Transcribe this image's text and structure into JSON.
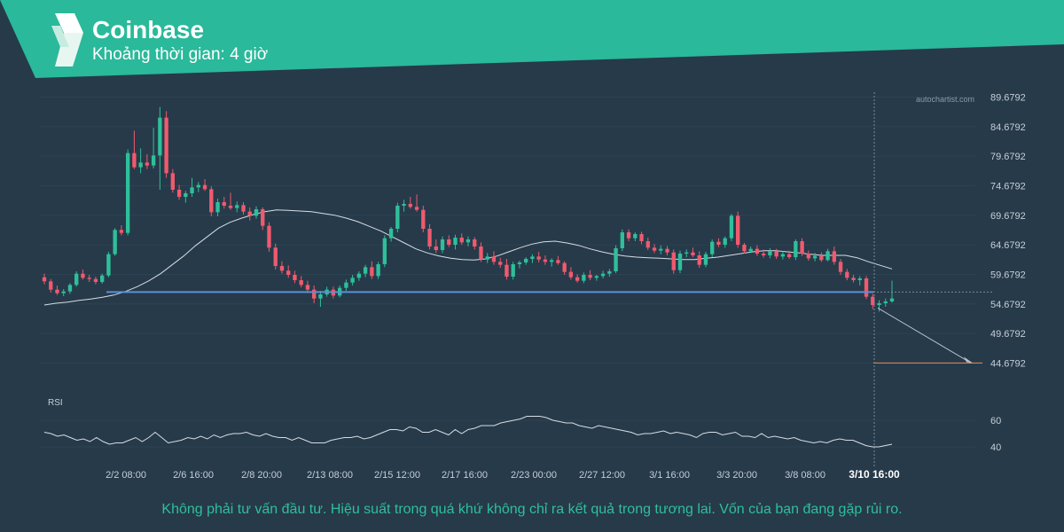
{
  "header": {
    "title": "Coinbase",
    "subtitle": "Khoảng thời gian: 4 giờ"
  },
  "watermark": "autochartist.com",
  "disclaimer": "Không phải tư vấn đầu tư. Hiệu suất trong quá khứ không chỉ ra kết quả trong tương lai. Vốn của bạn đang gặp rủi ro.",
  "colors": {
    "banner": "#2ab99a",
    "background": "#263a4a",
    "up_candle": "#2fbf9a",
    "down_candle": "#f05a6e",
    "moving_average": "#d8dde2",
    "support_line": "#5b8fd6",
    "target_line": "#f08a4b"
  },
  "chart_data": {
    "type": "candlestick",
    "timeframe": "4 giờ",
    "price_axis": {
      "ticks": [
        "89.6792",
        "84.6792",
        "79.6792",
        "74.6792",
        "69.6792",
        "64.6792",
        "59.6792",
        "54.6792",
        "49.6792",
        "44.6792"
      ],
      "ylim": [
        42.5,
        90.5
      ]
    },
    "x_tick_labels": [
      "2/2 08:00",
      "2/6 16:00",
      "2/8 20:00",
      "2/13 08:00",
      "2/15 12:00",
      "2/17 16:00",
      "2/23 00:00",
      "2/27 12:00",
      "3/1 16:00",
      "3/3 20:00",
      "3/8 08:00",
      "3/10 16:00"
    ],
    "current_time_label": "3/10 16:00",
    "support_level": 56.7,
    "target_level": 44.7,
    "projection": {
      "from_price": 54.0,
      "to_price": 44.7
    },
    "ohlc": [
      [
        59.2,
        59.8,
        58.0,
        58.5
      ],
      [
        58.5,
        58.9,
        56.6,
        57.1
      ],
      [
        57.1,
        57.8,
        56.2,
        56.5
      ],
      [
        56.5,
        57.2,
        56.0,
        56.8
      ],
      [
        56.8,
        58.2,
        56.4,
        57.9
      ],
      [
        57.9,
        60.2,
        57.6,
        59.8
      ],
      [
        59.8,
        60.5,
        58.8,
        59.1
      ],
      [
        59.1,
        59.6,
        58.4,
        58.9
      ],
      [
        58.9,
        59.3,
        58.0,
        58.4
      ],
      [
        58.4,
        59.8,
        58.1,
        59.5
      ],
      [
        59.5,
        63.5,
        59.2,
        63.1
      ],
      [
        63.1,
        67.5,
        62.8,
        67.2
      ],
      [
        67.2,
        68.0,
        66.3,
        66.7
      ],
      [
        66.7,
        80.8,
        66.3,
        80.2
      ],
      [
        80.2,
        84.0,
        77.5,
        77.8
      ],
      [
        77.8,
        81.0,
        76.8,
        78.6
      ],
      [
        78.6,
        80.0,
        77.5,
        78.1
      ],
      [
        78.1,
        84.5,
        77.6,
        79.8
      ],
      [
        79.8,
        88.0,
        74.0,
        86.2
      ],
      [
        86.2,
        87.3,
        76.0,
        76.8
      ],
      [
        76.8,
        77.5,
        73.5,
        74.0
      ],
      [
        74.0,
        74.8,
        72.3,
        72.8
      ],
      [
        72.8,
        73.8,
        71.8,
        73.4
      ],
      [
        73.4,
        76.0,
        72.8,
        74.4
      ],
      [
        74.4,
        75.3,
        73.6,
        74.8
      ],
      [
        74.8,
        75.8,
        73.8,
        74.1
      ],
      [
        74.1,
        74.6,
        69.5,
        70.2
      ],
      [
        70.2,
        72.5,
        69.5,
        71.9
      ],
      [
        71.9,
        72.8,
        70.8,
        71.3
      ],
      [
        71.3,
        73.5,
        70.6,
        70.9
      ],
      [
        70.9,
        72.0,
        70.2,
        71.4
      ],
      [
        71.4,
        71.9,
        69.8,
        70.3
      ],
      [
        70.3,
        71.0,
        68.8,
        69.6
      ],
      [
        69.6,
        71.2,
        69.1,
        70.7
      ],
      [
        70.7,
        71.0,
        67.2,
        67.9
      ],
      [
        67.9,
        68.5,
        63.5,
        64.2
      ],
      [
        64.2,
        64.9,
        60.5,
        61.1
      ],
      [
        61.1,
        61.9,
        59.8,
        60.3
      ],
      [
        60.3,
        61.2,
        59.1,
        59.6
      ],
      [
        59.6,
        60.3,
        58.2,
        58.7
      ],
      [
        58.7,
        59.4,
        57.5,
        57.9
      ],
      [
        57.9,
        58.6,
        56.5,
        57.1
      ],
      [
        57.1,
        57.8,
        54.8,
        55.6
      ],
      [
        55.6,
        56.9,
        54.2,
        56.3
      ],
      [
        56.3,
        57.6,
        55.9,
        57.1
      ],
      [
        57.1,
        57.6,
        55.6,
        56.1
      ],
      [
        56.1,
        57.8,
        55.8,
        57.4
      ],
      [
        57.4,
        58.8,
        56.9,
        58.3
      ],
      [
        58.3,
        59.6,
        57.8,
        59.1
      ],
      [
        59.1,
        60.2,
        58.6,
        59.8
      ],
      [
        59.8,
        61.3,
        59.2,
        60.9
      ],
      [
        60.9,
        61.9,
        58.9,
        59.4
      ],
      [
        59.4,
        61.8,
        58.9,
        61.4
      ],
      [
        61.4,
        66.3,
        60.9,
        65.8
      ],
      [
        65.8,
        67.7,
        65.2,
        67.4
      ],
      [
        67.4,
        71.8,
        66.8,
        71.3
      ],
      [
        71.3,
        72.3,
        70.3,
        71.6
      ],
      [
        71.6,
        72.8,
        70.8,
        71.1
      ],
      [
        71.1,
        73.2,
        70.3,
        70.6
      ],
      [
        70.6,
        71.3,
        66.8,
        67.4
      ],
      [
        67.4,
        68.2,
        63.9,
        64.4
      ],
      [
        64.4,
        65.6,
        63.3,
        63.8
      ],
      [
        63.8,
        66.1,
        63.3,
        65.6
      ],
      [
        65.6,
        66.3,
        64.3,
        64.7
      ],
      [
        64.7,
        66.4,
        63.9,
        65.9
      ],
      [
        65.9,
        66.6,
        64.7,
        65.1
      ],
      [
        65.1,
        66.1,
        64.4,
        65.6
      ],
      [
        65.6,
        66.0,
        63.9,
        64.4
      ],
      [
        64.4,
        65.1,
        61.8,
        62.2
      ],
      [
        62.2,
        63.3,
        61.6,
        62.7
      ],
      [
        62.7,
        63.6,
        61.3,
        61.8
      ],
      [
        61.8,
        62.5,
        60.8,
        61.3
      ],
      [
        61.3,
        62.3,
        58.8,
        59.3
      ],
      [
        59.3,
        61.8,
        58.8,
        61.4
      ],
      [
        61.4,
        62.0,
        60.7,
        61.7
      ],
      [
        61.7,
        62.6,
        61.3,
        62.3
      ],
      [
        62.3,
        63.1,
        61.6,
        62.7
      ],
      [
        62.7,
        63.5,
        61.7,
        62.2
      ],
      [
        62.2,
        62.9,
        61.3,
        61.8
      ],
      [
        61.8,
        62.4,
        61.0,
        62.1
      ],
      [
        62.1,
        62.8,
        61.3,
        61.6
      ],
      [
        61.6,
        61.9,
        59.6,
        60.1
      ],
      [
        60.1,
        60.9,
        58.8,
        59.2
      ],
      [
        59.2,
        59.7,
        58.3,
        58.6
      ],
      [
        58.6,
        60.0,
        58.2,
        59.6
      ],
      [
        59.6,
        60.4,
        58.7,
        59.1
      ],
      [
        59.1,
        59.6,
        58.6,
        59.4
      ],
      [
        59.4,
        60.3,
        59.0,
        59.8
      ],
      [
        59.8,
        60.6,
        59.3,
        60.2
      ],
      [
        60.2,
        64.6,
        59.9,
        64.1
      ],
      [
        64.1,
        67.3,
        63.6,
        66.8
      ],
      [
        66.8,
        67.3,
        65.3,
        65.8
      ],
      [
        65.8,
        66.8,
        65.3,
        66.5
      ],
      [
        66.5,
        66.9,
        64.8,
        65.3
      ],
      [
        65.3,
        65.9,
        63.8,
        64.2
      ],
      [
        64.2,
        64.8,
        63.3,
        63.7
      ],
      [
        63.7,
        64.6,
        63.1,
        64.0
      ],
      [
        64.0,
        64.5,
        62.9,
        63.4
      ],
      [
        63.4,
        63.9,
        59.8,
        60.4
      ],
      [
        60.4,
        63.7,
        59.9,
        63.2
      ],
      [
        63.2,
        63.9,
        62.6,
        63.4
      ],
      [
        63.4,
        64.2,
        62.6,
        62.9
      ],
      [
        62.9,
        63.6,
        60.8,
        61.3
      ],
      [
        61.3,
        63.5,
        60.9,
        63.1
      ],
      [
        63.1,
        65.6,
        62.6,
        65.2
      ],
      [
        65.2,
        65.8,
        64.3,
        64.7
      ],
      [
        64.7,
        66.1,
        64.2,
        65.8
      ],
      [
        65.8,
        69.9,
        65.3,
        69.6
      ],
      [
        69.6,
        70.3,
        64.2,
        64.7
      ],
      [
        64.7,
        65.0,
        63.2,
        63.6
      ],
      [
        63.6,
        64.4,
        63.3,
        64.0
      ],
      [
        64.0,
        64.6,
        62.8,
        63.2
      ],
      [
        63.2,
        63.9,
        62.5,
        62.9
      ],
      [
        62.9,
        64.1,
        62.4,
        63.6
      ],
      [
        63.6,
        64.0,
        62.3,
        62.7
      ],
      [
        62.7,
        63.6,
        62.2,
        63.1
      ],
      [
        63.1,
        63.7,
        62.3,
        62.6
      ],
      [
        62.6,
        65.6,
        62.1,
        65.3
      ],
      [
        65.3,
        65.8,
        62.8,
        63.2
      ],
      [
        63.2,
        63.7,
        62.0,
        62.4
      ],
      [
        62.4,
        63.3,
        61.9,
        62.8
      ],
      [
        62.8,
        63.4,
        61.8,
        62.1
      ],
      [
        62.1,
        64.0,
        61.9,
        63.6
      ],
      [
        63.6,
        64.4,
        61.3,
        61.8
      ],
      [
        61.8,
        62.3,
        59.6,
        60.1
      ],
      [
        60.1,
        60.6,
        58.7,
        59.1
      ],
      [
        59.1,
        59.6,
        58.3,
        58.7
      ],
      [
        58.7,
        59.4,
        57.8,
        59.0
      ],
      [
        59.0,
        59.4,
        55.5,
        55.9
      ],
      [
        55.9,
        56.4,
        53.8,
        54.5
      ],
      [
        54.5,
        55.3,
        53.4,
        54.8
      ],
      [
        54.8,
        55.6,
        54.2,
        55.1
      ],
      [
        55.1,
        58.6,
        54.9,
        55.6
      ]
    ],
    "moving_average": [
      54.5,
      54.8,
      55.0,
      55.3,
      55.5,
      55.8,
      56.2,
      56.8,
      57.6,
      58.6,
      59.8,
      61.3,
      62.8,
      64.5,
      66.0,
      67.5,
      68.5,
      69.2,
      69.8,
      70.3,
      70.6,
      70.5,
      70.4,
      70.3,
      70.0,
      69.7,
      69.2,
      68.6,
      67.8,
      67.0,
      66.0,
      65.0,
      64.0,
      63.3,
      62.8,
      62.4,
      62.2,
      62.1,
      62.3,
      62.8,
      63.5,
      64.2,
      64.8,
      65.2,
      65.3,
      65.0,
      64.6,
      64.0,
      63.5,
      63.1,
      62.8,
      62.6,
      62.5,
      62.4,
      62.3,
      62.2,
      62.2,
      62.4,
      62.6,
      62.9,
      63.2,
      63.5,
      63.7,
      63.7,
      63.5,
      63.3,
      63.1,
      62.9,
      62.9,
      62.9,
      62.5,
      61.8,
      61.2,
      60.6
    ],
    "rsi": {
      "label": "RSI",
      "ticks": [
        "60",
        "40"
      ],
      "ylim": [
        30,
        72
      ],
      "values": [
        51,
        50,
        48,
        49,
        47,
        45,
        46,
        44,
        47,
        44,
        42,
        43,
        43,
        45,
        47,
        44,
        47,
        51,
        47,
        43,
        44,
        45,
        47,
        46,
        48,
        46,
        49,
        47,
        49,
        50,
        50,
        51,
        49,
        48,
        50,
        48,
        47,
        47,
        45,
        47,
        45,
        43,
        43,
        43,
        45,
        46,
        47,
        47,
        48,
        46,
        47,
        49,
        51,
        53,
        53,
        52,
        55,
        54,
        51,
        51,
        53,
        51,
        49,
        53,
        50,
        53,
        54,
        56,
        56,
        56,
        58,
        59,
        60,
        61,
        63,
        63,
        63,
        62,
        60,
        59,
        58,
        58,
        56,
        55,
        54,
        56,
        55,
        54,
        53,
        52,
        51,
        49,
        50,
        50,
        51,
        52,
        50,
        51,
        50,
        49,
        47,
        50,
        51,
        51,
        49,
        50,
        51,
        48,
        48,
        47,
        50,
        47,
        48,
        47,
        46,
        47,
        45,
        44,
        43,
        44,
        43,
        45,
        46,
        45,
        45,
        43,
        41,
        40,
        40,
        41,
        42
      ]
    }
  }
}
